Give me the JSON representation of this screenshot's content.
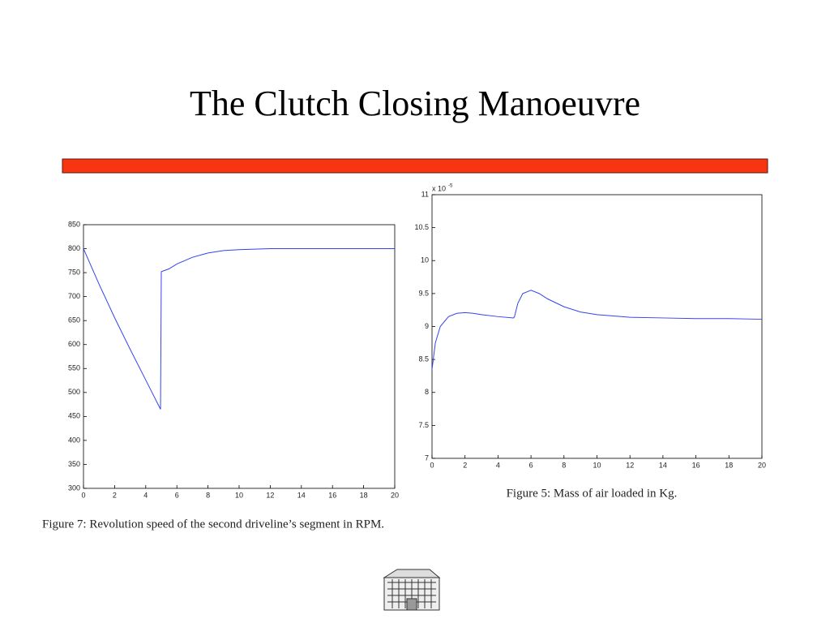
{
  "title": "The Clutch Closing Manoeuvre",
  "chart_data": [
    {
      "type": "line",
      "caption": "Figure 7: Revolution speed of the second driveline’s segment in RPM.",
      "x": [
        0,
        1,
        2,
        3,
        4,
        4.95,
        5,
        5.5,
        6,
        7,
        8,
        9,
        10,
        12,
        14,
        16,
        18,
        20
      ],
      "series": [
        {
          "color": "#3344ee",
          "values": [
            800,
            726,
            656,
            590,
            526,
            465,
            752,
            758,
            768,
            782,
            791,
            796,
            798,
            800,
            800,
            800,
            800,
            800
          ]
        }
      ],
      "xlim": [
        0,
        20
      ],
      "xticks": [
        0,
        2,
        4,
        6,
        8,
        10,
        12,
        14,
        16,
        18,
        20
      ],
      "ylim": [
        300,
        850
      ],
      "yticks": [
        300,
        350,
        400,
        450,
        500,
        550,
        600,
        650,
        700,
        750,
        800,
        850
      ]
    },
    {
      "type": "line",
      "caption": "Figure 5: Mass of air loaded in Kg.",
      "y_multiplier": {
        "base": "x 10",
        "power": "-5"
      },
      "x": [
        0,
        0.2,
        0.5,
        1,
        1.5,
        2,
        2.5,
        3,
        4,
        4.95,
        5,
        5.2,
        5.5,
        6,
        6.5,
        7,
        8,
        9,
        10,
        12,
        14,
        16,
        18,
        20
      ],
      "series": [
        {
          "color": "#3344ee",
          "values": [
            8.35,
            8.75,
            9.0,
            9.15,
            9.2,
            9.21,
            9.2,
            9.18,
            9.15,
            9.13,
            9.15,
            9.35,
            9.5,
            9.55,
            9.5,
            9.42,
            9.3,
            9.22,
            9.18,
            9.14,
            9.13,
            9.12,
            9.12,
            9.11
          ]
        }
      ],
      "xlim": [
        0,
        20
      ],
      "xticks": [
        0,
        2,
        4,
        6,
        8,
        10,
        12,
        14,
        16,
        18,
        20
      ],
      "ylim": [
        7,
        11
      ],
      "yticks": [
        7,
        7.5,
        8,
        8.5,
        9,
        9.5,
        10,
        10.5,
        11
      ]
    }
  ]
}
